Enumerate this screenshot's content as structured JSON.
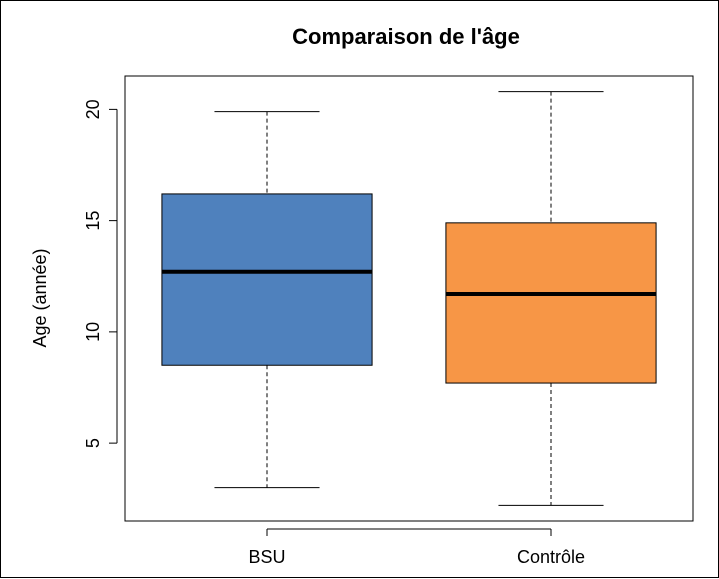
{
  "chart_data": {
    "type": "boxplot",
    "title": "Comparaison de l'âge",
    "xlabel": "",
    "ylabel": "Age (année)",
    "ylim": [
      1.5,
      21.5
    ],
    "yticks": [
      5,
      10,
      15,
      20
    ],
    "grid": false,
    "legend": "none",
    "categories": [
      "BSU",
      "Contrôle"
    ],
    "boxes": [
      {
        "category": "BSU",
        "whisker_low": 3.0,
        "q1": 8.5,
        "median": 12.7,
        "q3": 16.2,
        "whisker_high": 19.9,
        "color": "#4f81bd"
      },
      {
        "category": "Contrôle",
        "whisker_low": 2.2,
        "q1": 7.7,
        "median": 11.7,
        "q3": 14.9,
        "whisker_high": 20.8,
        "color": "#f79646"
      }
    ]
  }
}
